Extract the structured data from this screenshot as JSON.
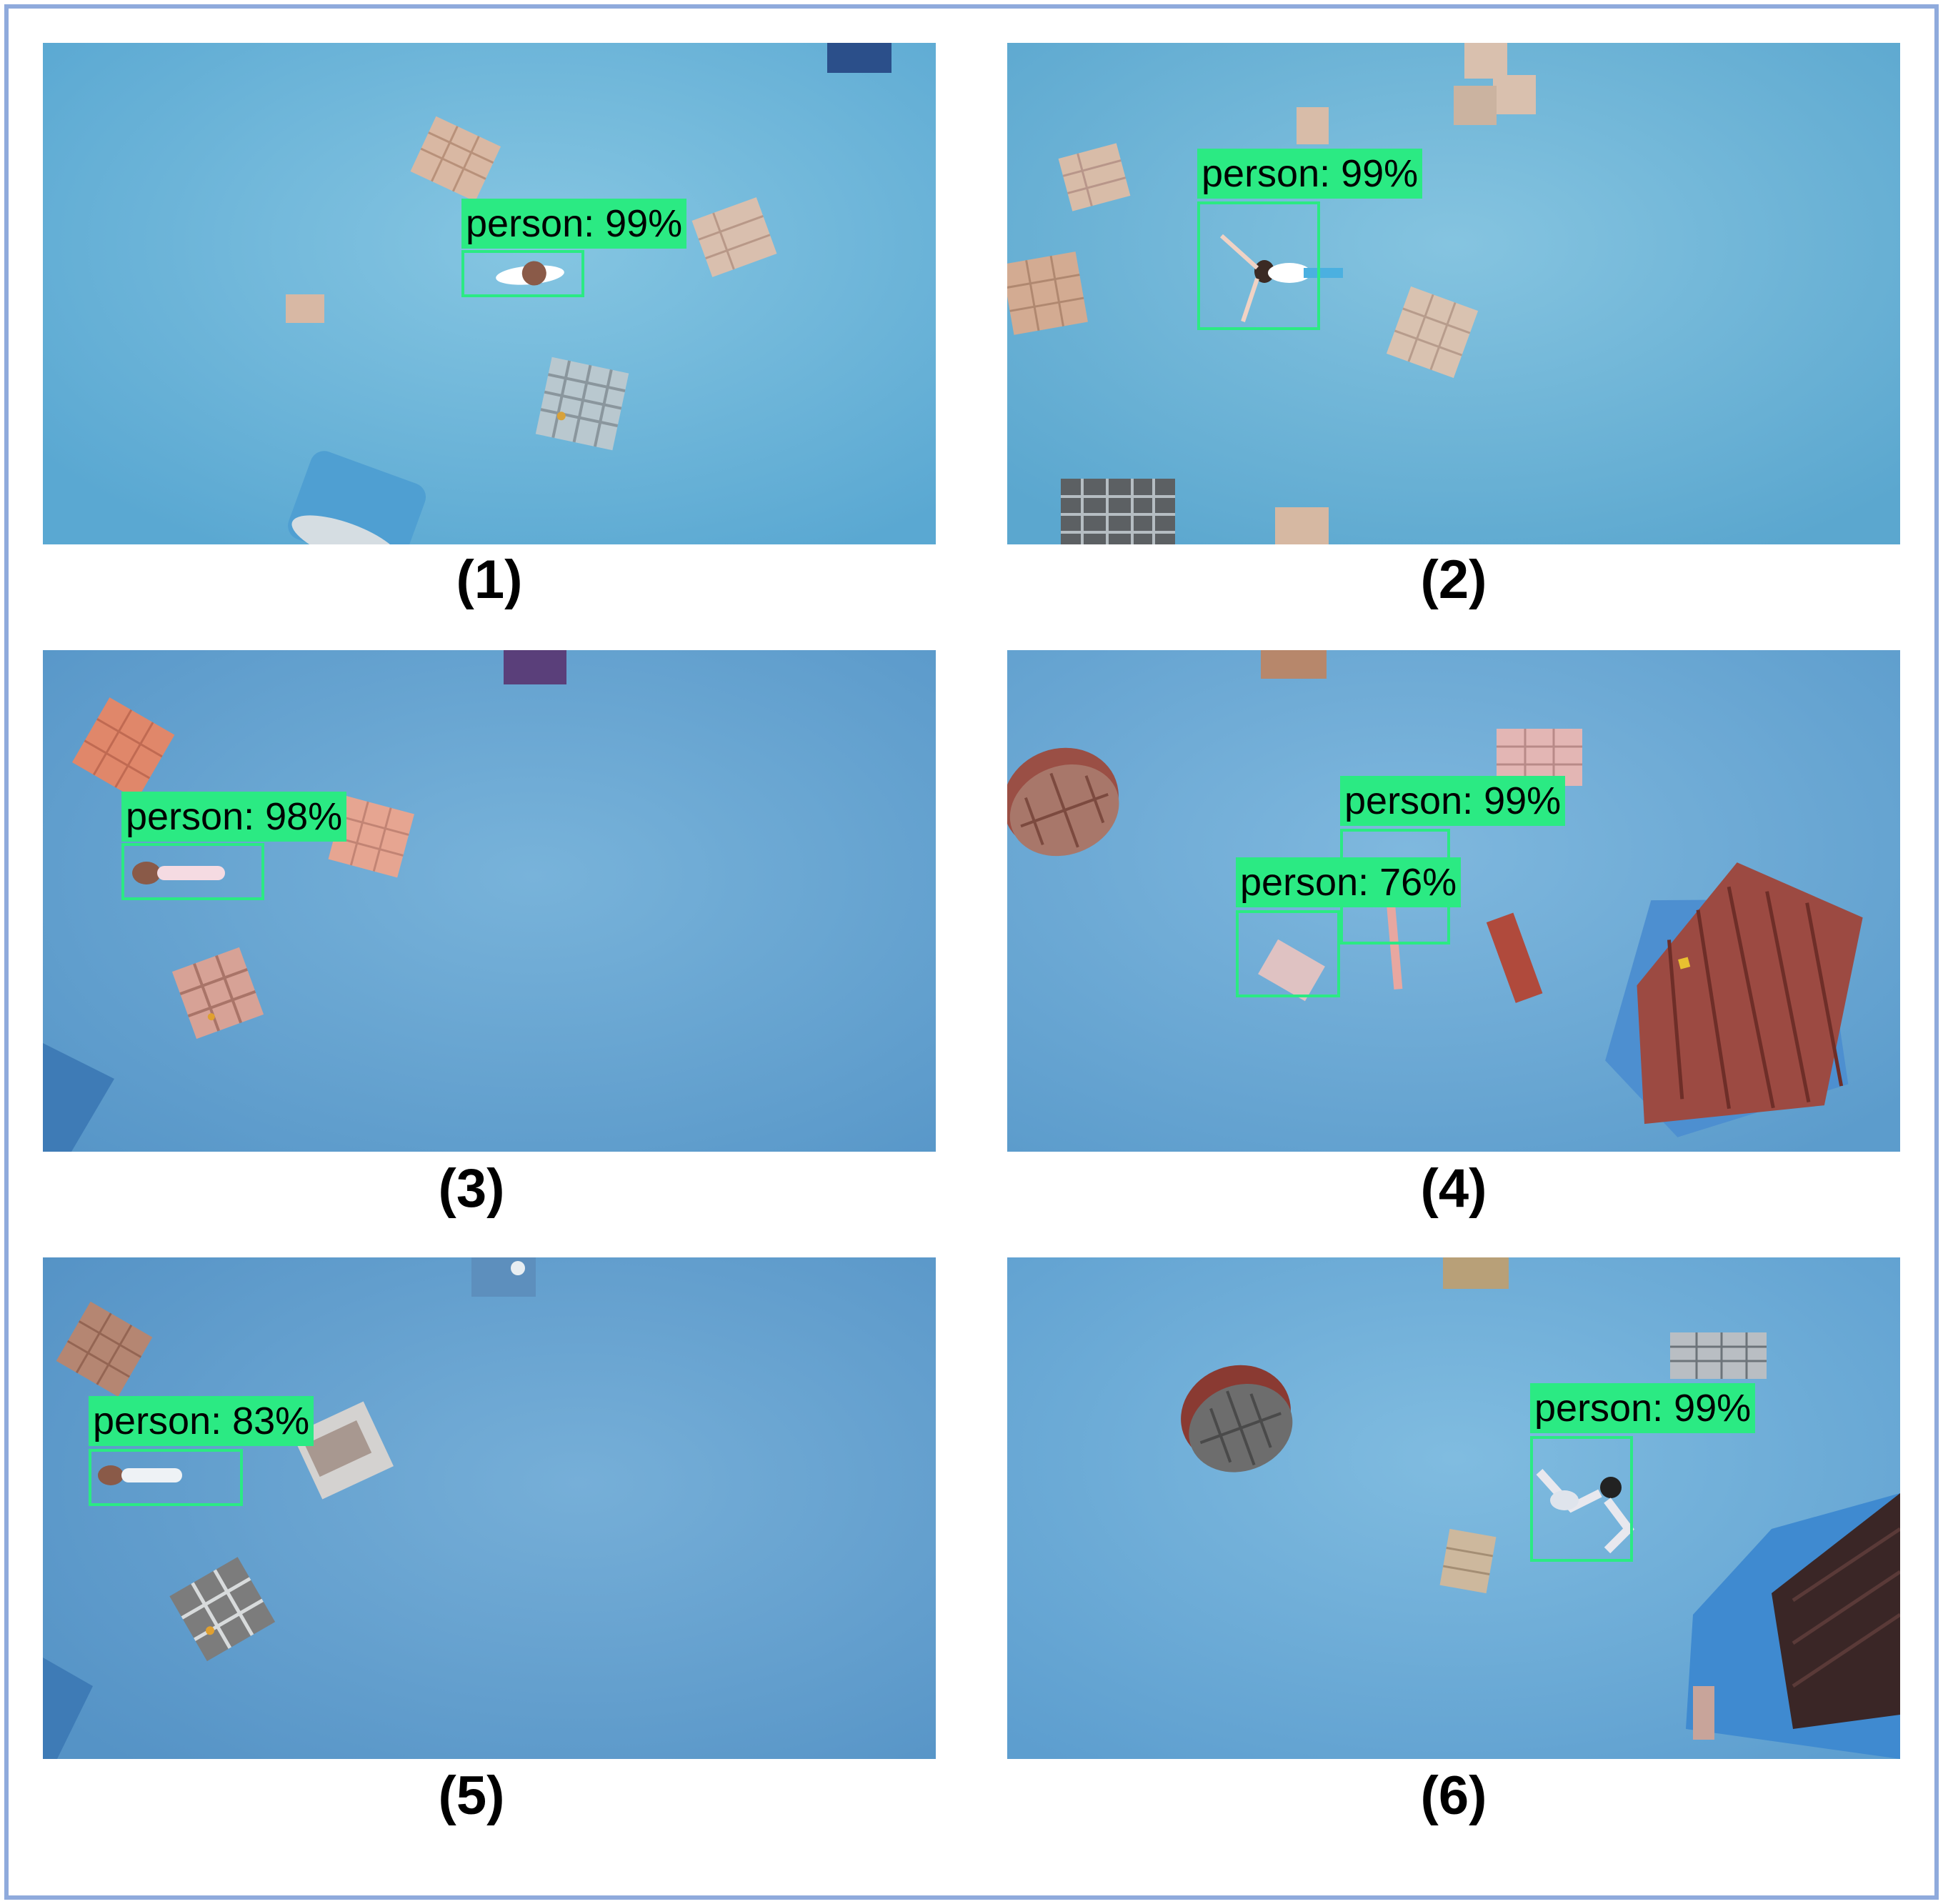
{
  "colors": {
    "frame": "#8faadc",
    "detection_box": "#2bea83",
    "water": "#6fb6d8"
  },
  "panels": [
    {
      "caption": "(1)",
      "detections": [
        {
          "label": "person: 99%"
        }
      ]
    },
    {
      "caption": "(2)",
      "detections": [
        {
          "label": "person: 99%"
        }
      ]
    },
    {
      "caption": "(3)",
      "detections": [
        {
          "label": "person: 98%"
        }
      ]
    },
    {
      "caption": "(4)",
      "detections": [
        {
          "label": "person: 99%"
        },
        {
          "label": "person: 76%"
        }
      ]
    },
    {
      "caption": "(5)",
      "detections": [
        {
          "label": "person: 83%"
        }
      ]
    },
    {
      "caption": "(6)",
      "detections": [
        {
          "label": "person: 99%"
        }
      ]
    }
  ]
}
